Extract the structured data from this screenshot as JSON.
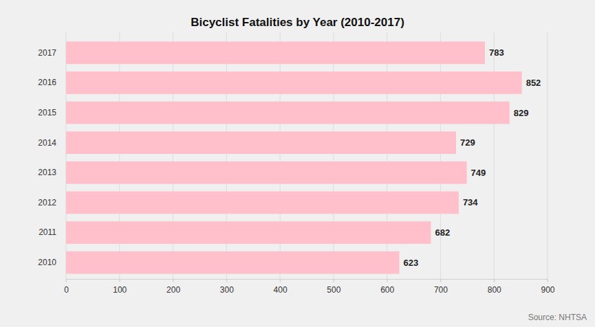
{
  "chart_data": {
    "type": "bar",
    "orientation": "horizontal",
    "title": "Bicyclist Fatalities by Year (2010-2017)",
    "categories": [
      "2010",
      "2011",
      "2012",
      "2013",
      "2014",
      "2015",
      "2016",
      "2017"
    ],
    "values": [
      623,
      682,
      734,
      749,
      729,
      829,
      852,
      783
    ],
    "color": "#ffc0cb",
    "xlim": [
      0,
      900
    ],
    "xticks": [
      0,
      100,
      200,
      300,
      400,
      500,
      600,
      700,
      800,
      900
    ],
    "grid": true,
    "data_labels": true,
    "annotations": [
      "Source: NHTSA"
    ]
  }
}
